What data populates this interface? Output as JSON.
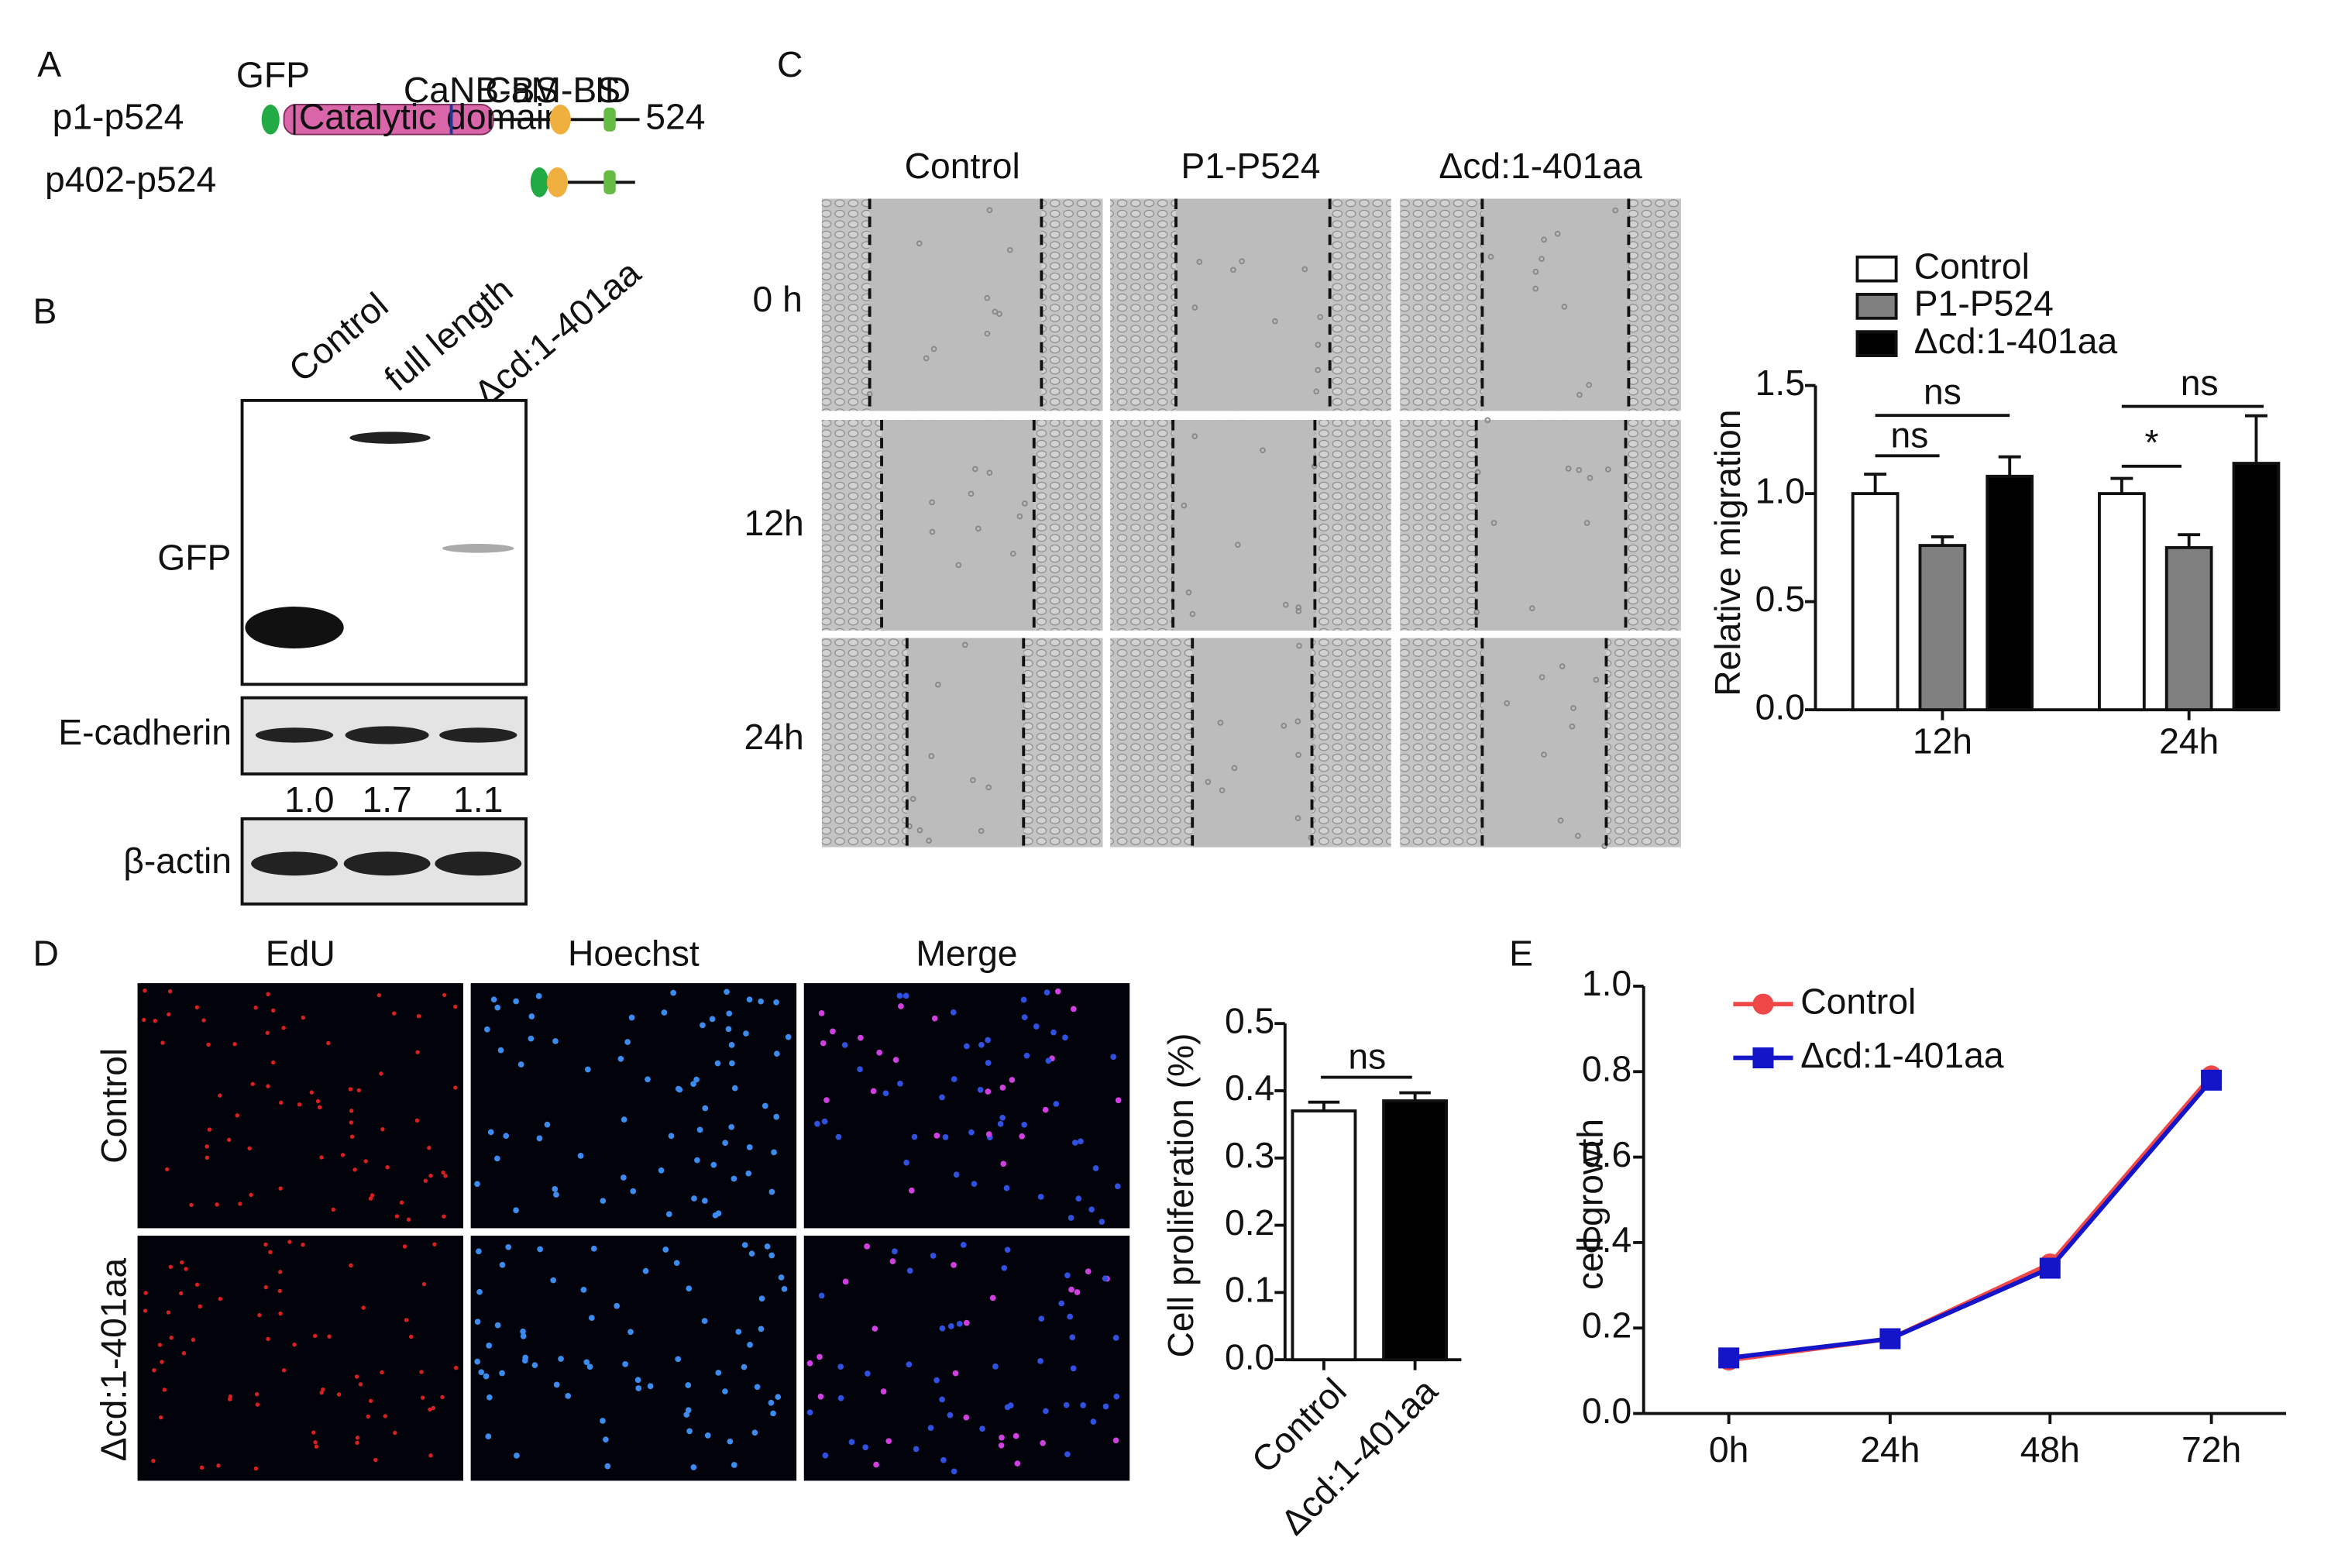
{
  "panel_labels": [
    "A",
    "B",
    "C",
    "D",
    "E"
  ],
  "panel_a": {
    "gfp_label": "GFP",
    "constructs": [
      "p1-p524",
      "p402-p524"
    ],
    "domains": [
      "Catalytic domain",
      "CaNB-BS",
      "CaM-BS",
      "ID"
    ],
    "end_label": "524"
  },
  "panel_b": {
    "lanes": [
      "Control",
      "full length",
      "Δcd:1-401aa"
    ],
    "blots": [
      "GFP",
      "E-cadherin",
      "β-actin"
    ],
    "e_cadherin_ratios": [
      "1.0",
      "1.7",
      "1.1"
    ]
  },
  "panel_c": {
    "columns": [
      "Control",
      "P1-P524",
      "Δcd:1-401aa"
    ],
    "rows": [
      "0 h",
      "12h",
      "24h"
    ]
  },
  "panel_d": {
    "columns": [
      "EdU",
      "Hoechst",
      "Merge"
    ],
    "rows": [
      "Control",
      "Δcd:1-401aa"
    ]
  },
  "chart_data": [
    {
      "type": "bar",
      "categories": [
        "12h",
        "24h"
      ],
      "series": [
        {
          "name": "Control",
          "color": "#ffffff",
          "values": [
            1.0,
            1.0
          ],
          "errors": [
            0.09,
            0.07
          ]
        },
        {
          "name": "P1-P524",
          "color": "#808080",
          "values": [
            0.76,
            0.75
          ],
          "errors": [
            0.04,
            0.06
          ]
        },
        {
          "name": "Δcd:1-401aa",
          "color": "#000000",
          "values": [
            1.08,
            1.14
          ],
          "errors": [
            0.09,
            0.22
          ]
        }
      ],
      "ylabel": "Relative migration",
      "ylim": [
        0,
        1.5
      ],
      "yticks": [
        {
          "value": 0,
          "label": "0.0"
        },
        {
          "value": 0.5,
          "label": "0.5"
        },
        {
          "value": 1,
          "label": "1.0"
        },
        {
          "value": 1.5,
          "label": "1.5"
        }
      ],
      "annotations": [
        "ns",
        "ns",
        "ns",
        "*"
      ],
      "legend": "upper left"
    },
    {
      "type": "bar",
      "categories": [
        "Control",
        "Δcd:1-401aa"
      ],
      "values": [
        0.37,
        0.385
      ],
      "errors": [
        0.013,
        0.012
      ],
      "colors": [
        "#ffffff",
        "#000000"
      ],
      "ylabel": "Cell proliferation (%)",
      "ylim": [
        0,
        0.5
      ],
      "yticks": [
        {
          "value": 0,
          "label": "0.0"
        },
        0.1,
        0.2,
        0.3,
        0.4,
        0.5
      ],
      "annotations": [
        "ns"
      ]
    },
    {
      "type": "line",
      "categories": [
        "0h",
        "24h",
        "48h",
        "72h"
      ],
      "series": [
        {
          "name": "Control",
          "color": "#f04848",
          "marker": "circle",
          "values": [
            0.125,
            0.175,
            0.35,
            0.79
          ]
        },
        {
          "name": "Δcd:1-401aa",
          "color": "#1414c8",
          "marker": "square",
          "values": [
            0.13,
            0.175,
            0.34,
            0.78
          ]
        }
      ],
      "ylabel": "cell growth",
      "ylim": [
        0,
        1
      ],
      "yticks": [
        {
          "value": 0,
          "label": "0.0"
        },
        0.2,
        0.4,
        0.6,
        0.8,
        {
          "value": 1,
          "label": "1.0"
        }
      ],
      "legend": "upper left"
    }
  ]
}
